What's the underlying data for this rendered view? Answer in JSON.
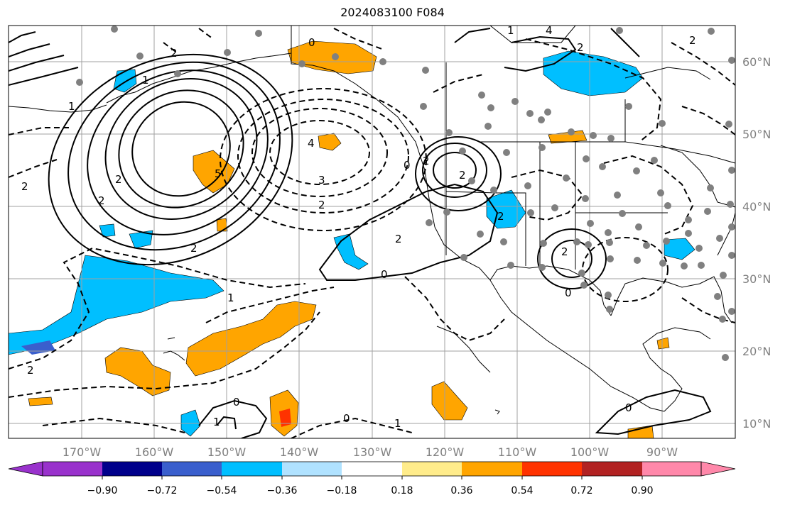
{
  "title": "2024083100 F084",
  "map": {
    "lon_labels": [
      "170°W",
      "160°W",
      "150°W",
      "140°W",
      "130°W",
      "120°W",
      "110°W",
      "100°W",
      "90°W"
    ],
    "lat_labels": [
      "60°N",
      "50°N",
      "40°N",
      "30°N",
      "20°N",
      "10°N"
    ],
    "contour_labels": [
      "0",
      "4",
      "2",
      "1",
      "2",
      "2",
      "5",
      "2",
      "4",
      "3",
      "2",
      "2",
      "1",
      "0",
      "2",
      "2",
      "0",
      "2",
      "2",
      "2",
      "0",
      "1",
      "2",
      "0",
      "0",
      "1",
      "1",
      "2",
      "1",
      "0",
      "2"
    ],
    "station_marker_color": "#808080",
    "grid": true
  },
  "colorbar": {
    "ticks": [
      "−0.90",
      "−0.72",
      "−0.54",
      "−0.36",
      "−0.18",
      "0.18",
      "0.36",
      "0.54",
      "0.72",
      "0.90"
    ],
    "colors": [
      "#9932cc",
      "#00008b",
      "#3a5fcd",
      "#00bfff",
      "#b0e2ff",
      "#ffffff",
      "#ffec8b",
      "#ffa500",
      "#ff3300",
      "#b22222",
      "#ff88aa"
    ],
    "extend": "both"
  }
}
